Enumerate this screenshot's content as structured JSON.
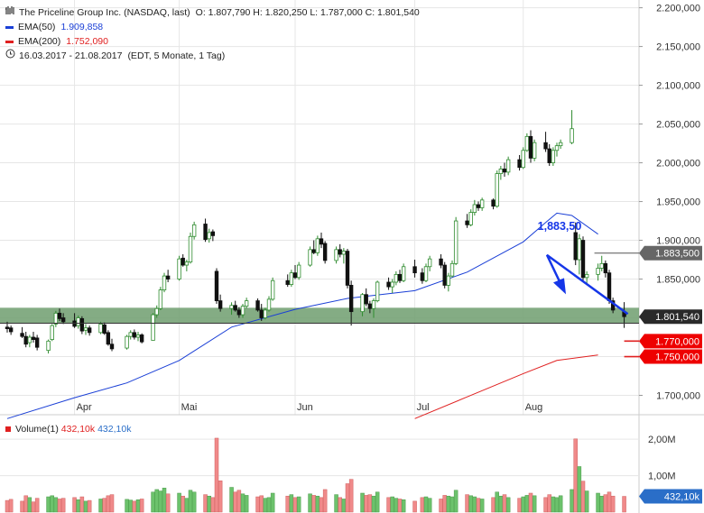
{
  "header": {
    "title": "The Priceline Group Inc. (NASDAQ, last)",
    "ohlc": "O: 1.807,790  H: 1.820,250  L: 1.787,000  C: 1.801,540",
    "ema50_label": "EMA(50)",
    "ema50_value": "1.909,858",
    "ema200_label": "EMA(200)",
    "ema200_value": "1.752,090",
    "range": "16.03.2017 - 21.08.2017",
    "range_detail": "(EDT, 5 Monate, 1 Tag)"
  },
  "volume_legend": {
    "label": "Volume(1)",
    "value_red": "432,10k",
    "value_blue": "432,10k"
  },
  "colors": {
    "up": "#2e8b2e",
    "down": "#111111",
    "ema50": "#1a3fd6",
    "ema200": "#e02020",
    "zone": "#6e9e6e",
    "badge_red": "#ee0000",
    "badge_dark": "#2a2a2a",
    "badge_grey": "#666666",
    "vol_up": "#6cc26c",
    "vol_down": "#f08a8a",
    "arrow": "#1536e8"
  },
  "annotations": {
    "target": "1,883,50"
  },
  "chart_data": {
    "type": "candlestick",
    "y_ticks": [
      "2.200,000",
      "2.150,000",
      "2.100,000",
      "2.050,000",
      "2.000,000",
      "1.950,000",
      "1.900,000",
      "1.850,000",
      "1.800,000",
      "1.750,000",
      "1.700,000"
    ],
    "y_tick_values": [
      2200,
      2150,
      2100,
      2050,
      2000,
      1950,
      1900,
      1850,
      1800,
      1750,
      1700
    ],
    "ylim": [
      1675,
      2210
    ],
    "x_labels": [
      "Apr",
      "Mai",
      "Jun",
      "Jul",
      "Aug"
    ],
    "x_label_dates": [
      "2017-04-03",
      "2017-05-01",
      "2017-06-01",
      "2017-07-03",
      "2017-08-01"
    ],
    "xlim": [
      "2017-03-16",
      "2017-08-31"
    ],
    "grid": true,
    "support_zone": [
      1793,
      1813
    ],
    "price_badges": [
      {
        "label": "1.883,500",
        "value": 1883.5,
        "style": "grey"
      },
      {
        "label": "1.801,540",
        "value": 1801.54,
        "style": "dark"
      },
      {
        "label": "1.770,000",
        "value": 1770,
        "style": "red"
      },
      {
        "label": "1.750,000",
        "value": 1750,
        "style": "red"
      }
    ],
    "red_levels": [
      1770,
      1750
    ],
    "target_level": 1883.5,
    "volume_ticks": [
      "2,00M",
      "1,00M"
    ],
    "volume_tick_values": [
      2.0,
      1.0
    ],
    "volume_badge": "432,10k",
    "volume_current": 0.4321,
    "ema50": [
      [
        "2017-03-16",
        1670
      ],
      [
        "2017-04-03",
        1697
      ],
      [
        "2017-04-17",
        1716
      ],
      [
        "2017-05-01",
        1745
      ],
      [
        "2017-05-15",
        1788
      ],
      [
        "2017-06-01",
        1811
      ],
      [
        "2017-06-15",
        1825
      ],
      [
        "2017-07-03",
        1835
      ],
      [
        "2017-07-17",
        1859
      ],
      [
        "2017-08-01",
        1898
      ],
      [
        "2017-08-07",
        1923
      ],
      [
        "2017-08-10",
        1935
      ],
      [
        "2017-08-14",
        1932
      ],
      [
        "2017-08-21",
        1908
      ]
    ],
    "ema200": [
      [
        "2017-07-03",
        1670
      ],
      [
        "2017-07-17",
        1698
      ],
      [
        "2017-08-01",
        1728
      ],
      [
        "2017-08-10",
        1745
      ],
      [
        "2017-08-21",
        1752
      ]
    ],
    "candles": [
      {
        "d": "2017-03-16",
        "o": 1788,
        "h": 1795,
        "l": 1781,
        "c": 1786,
        "v": 0.32
      },
      {
        "d": "2017-03-17",
        "o": 1787,
        "h": 1790,
        "l": 1778,
        "c": 1782,
        "v": 0.35
      },
      {
        "d": "2017-03-20",
        "o": 1780,
        "h": 1788,
        "l": 1774,
        "c": 1776,
        "v": 0.3
      },
      {
        "d": "2017-03-21",
        "o": 1776,
        "h": 1782,
        "l": 1762,
        "c": 1766,
        "v": 0.45
      },
      {
        "d": "2017-03-22",
        "o": 1768,
        "h": 1778,
        "l": 1762,
        "c": 1775,
        "v": 0.4
      },
      {
        "d": "2017-03-23",
        "o": 1775,
        "h": 1782,
        "l": 1768,
        "c": 1772,
        "v": 0.28
      },
      {
        "d": "2017-03-24",
        "o": 1774,
        "h": 1778,
        "l": 1758,
        "c": 1762,
        "v": 0.38
      },
      {
        "d": "2017-03-27",
        "o": 1758,
        "h": 1772,
        "l": 1754,
        "c": 1770,
        "v": 0.42
      },
      {
        "d": "2017-03-28",
        "o": 1772,
        "h": 1792,
        "l": 1770,
        "c": 1790,
        "v": 0.45
      },
      {
        "d": "2017-03-29",
        "o": 1792,
        "h": 1809,
        "l": 1788,
        "c": 1806,
        "v": 0.4
      },
      {
        "d": "2017-03-30",
        "o": 1806,
        "h": 1812,
        "l": 1796,
        "c": 1799,
        "v": 0.36
      },
      {
        "d": "2017-03-31",
        "o": 1800,
        "h": 1806,
        "l": 1792,
        "c": 1795,
        "v": 0.38
      },
      {
        "d": "2017-04-03",
        "o": 1796,
        "h": 1806,
        "l": 1787,
        "c": 1789,
        "v": 0.4
      },
      {
        "d": "2017-04-04",
        "o": 1790,
        "h": 1803,
        "l": 1786,
        "c": 1800,
        "v": 0.34
      },
      {
        "d": "2017-04-05",
        "o": 1799,
        "h": 1802,
        "l": 1779,
        "c": 1783,
        "v": 0.42
      },
      {
        "d": "2017-04-06",
        "o": 1784,
        "h": 1792,
        "l": 1778,
        "c": 1787,
        "v": 0.3
      },
      {
        "d": "2017-04-07",
        "o": 1787,
        "h": 1790,
        "l": 1777,
        "c": 1781,
        "v": 0.32
      },
      {
        "d": "2017-04-10",
        "o": 1781,
        "h": 1795,
        "l": 1779,
        "c": 1792,
        "v": 0.36
      },
      {
        "d": "2017-04-11",
        "o": 1791,
        "h": 1794,
        "l": 1778,
        "c": 1780,
        "v": 0.38
      },
      {
        "d": "2017-04-12",
        "o": 1781,
        "h": 1784,
        "l": 1764,
        "c": 1766,
        "v": 0.45
      },
      {
        "d": "2017-04-13",
        "o": 1766,
        "h": 1773,
        "l": 1757,
        "c": 1760,
        "v": 0.48
      },
      {
        "d": "2017-04-17",
        "o": 1761,
        "h": 1778,
        "l": 1759,
        "c": 1776,
        "v": 0.35
      },
      {
        "d": "2017-04-18",
        "o": 1776,
        "h": 1784,
        "l": 1772,
        "c": 1781,
        "v": 0.33
      },
      {
        "d": "2017-04-19",
        "o": 1781,
        "h": 1785,
        "l": 1772,
        "c": 1775,
        "v": 0.3
      },
      {
        "d": "2017-04-20",
        "o": 1775,
        "h": 1782,
        "l": 1770,
        "c": 1778,
        "v": 0.34
      },
      {
        "d": "2017-04-21",
        "o": 1778,
        "h": 1780,
        "l": 1767,
        "c": 1769,
        "v": 0.36
      },
      {
        "d": "2017-04-24",
        "o": 1771,
        "h": 1806,
        "l": 1771,
        "c": 1804,
        "v": 0.55
      },
      {
        "d": "2017-04-25",
        "o": 1804,
        "h": 1816,
        "l": 1800,
        "c": 1812,
        "v": 0.62
      },
      {
        "d": "2017-04-26",
        "o": 1812,
        "h": 1840,
        "l": 1810,
        "c": 1836,
        "v": 0.58
      },
      {
        "d": "2017-04-27",
        "o": 1836,
        "h": 1858,
        "l": 1833,
        "c": 1854,
        "v": 0.66
      },
      {
        "d": "2017-04-28",
        "o": 1854,
        "h": 1862,
        "l": 1846,
        "c": 1850,
        "v": 0.5
      },
      {
        "d": "2017-05-01",
        "o": 1850,
        "h": 1880,
        "l": 1848,
        "c": 1876,
        "v": 0.52
      },
      {
        "d": "2017-05-02",
        "o": 1877,
        "h": 1882,
        "l": 1866,
        "c": 1868,
        "v": 0.44
      },
      {
        "d": "2017-05-03",
        "o": 1868,
        "h": 1875,
        "l": 1860,
        "c": 1872,
        "v": 0.38
      },
      {
        "d": "2017-05-04",
        "o": 1872,
        "h": 1910,
        "l": 1870,
        "c": 1905,
        "v": 0.6
      },
      {
        "d": "2017-05-05",
        "o": 1905,
        "h": 1924,
        "l": 1901,
        "c": 1920,
        "v": 0.55
      },
      {
        "d": "2017-05-08",
        "o": 1921,
        "h": 1928,
        "l": 1898,
        "c": 1901,
        "v": 0.48
      },
      {
        "d": "2017-05-09",
        "o": 1902,
        "h": 1915,
        "l": 1897,
        "c": 1910,
        "v": 0.44
      },
      {
        "d": "2017-05-10",
        "o": 1911,
        "h": 1914,
        "l": 1899,
        "c": 1906,
        "v": 0.4
      },
      {
        "d": "2017-05-11",
        "o": 1860,
        "h": 1864,
        "l": 1818,
        "c": 1822,
        "v": 2.03
      },
      {
        "d": "2017-05-12",
        "o": 1822,
        "h": 1830,
        "l": 1808,
        "c": 1812,
        "v": 0.86
      },
      {
        "d": "2017-05-15",
        "o": 1812,
        "h": 1820,
        "l": 1804,
        "c": 1816,
        "v": 0.68
      },
      {
        "d": "2017-05-16",
        "o": 1816,
        "h": 1822,
        "l": 1808,
        "c": 1810,
        "v": 0.55
      },
      {
        "d": "2017-05-17",
        "o": 1810,
        "h": 1814,
        "l": 1800,
        "c": 1804,
        "v": 0.6
      },
      {
        "d": "2017-05-18",
        "o": 1804,
        "h": 1818,
        "l": 1800,
        "c": 1815,
        "v": 0.5
      },
      {
        "d": "2017-05-19",
        "o": 1815,
        "h": 1826,
        "l": 1812,
        "c": 1822,
        "v": 0.46
      },
      {
        "d": "2017-05-22",
        "o": 1822,
        "h": 1825,
        "l": 1808,
        "c": 1810,
        "v": 0.42
      },
      {
        "d": "2017-05-23",
        "o": 1810,
        "h": 1818,
        "l": 1796,
        "c": 1800,
        "v": 0.45
      },
      {
        "d": "2017-05-24",
        "o": 1800,
        "h": 1813,
        "l": 1798,
        "c": 1810,
        "v": 0.38
      },
      {
        "d": "2017-05-25",
        "o": 1810,
        "h": 1828,
        "l": 1808,
        "c": 1824,
        "v": 0.4
      },
      {
        "d": "2017-05-26",
        "o": 1824,
        "h": 1852,
        "l": 1822,
        "c": 1848,
        "v": 0.52
      },
      {
        "d": "2017-05-30",
        "o": 1848,
        "h": 1856,
        "l": 1840,
        "c": 1843,
        "v": 0.44
      },
      {
        "d": "2017-05-31",
        "o": 1843,
        "h": 1862,
        "l": 1840,
        "c": 1858,
        "v": 0.48
      },
      {
        "d": "2017-06-01",
        "o": 1858,
        "h": 1868,
        "l": 1850,
        "c": 1852,
        "v": 0.4
      },
      {
        "d": "2017-06-02",
        "o": 1852,
        "h": 1872,
        "l": 1849,
        "c": 1868,
        "v": 0.42
      },
      {
        "d": "2017-06-05",
        "o": 1868,
        "h": 1892,
        "l": 1866,
        "c": 1888,
        "v": 0.5
      },
      {
        "d": "2017-06-06",
        "o": 1888,
        "h": 1900,
        "l": 1882,
        "c": 1884,
        "v": 0.46
      },
      {
        "d": "2017-06-07",
        "o": 1884,
        "h": 1906,
        "l": 1880,
        "c": 1902,
        "v": 0.44
      },
      {
        "d": "2017-06-08",
        "o": 1902,
        "h": 1910,
        "l": 1890,
        "c": 1895,
        "v": 0.4
      },
      {
        "d": "2017-06-09",
        "o": 1896,
        "h": 1899,
        "l": 1870,
        "c": 1874,
        "v": 0.62
      },
      {
        "d": "2017-06-12",
        "o": 1874,
        "h": 1892,
        "l": 1870,
        "c": 1888,
        "v": 0.48
      },
      {
        "d": "2017-06-13",
        "o": 1888,
        "h": 1895,
        "l": 1878,
        "c": 1882,
        "v": 0.4
      },
      {
        "d": "2017-06-14",
        "o": 1882,
        "h": 1890,
        "l": 1870,
        "c": 1886,
        "v": 0.36
      },
      {
        "d": "2017-06-15",
        "o": 1886,
        "h": 1889,
        "l": 1838,
        "c": 1842,
        "v": 0.78
      },
      {
        "d": "2017-06-16",
        "o": 1842,
        "h": 1848,
        "l": 1790,
        "c": 1808,
        "v": 0.9
      },
      {
        "d": "2017-06-19",
        "o": 1808,
        "h": 1832,
        "l": 1802,
        "c": 1830,
        "v": 0.52
      },
      {
        "d": "2017-06-20",
        "o": 1830,
        "h": 1838,
        "l": 1815,
        "c": 1818,
        "v": 0.46
      },
      {
        "d": "2017-06-21",
        "o": 1818,
        "h": 1822,
        "l": 1806,
        "c": 1812,
        "v": 0.48
      },
      {
        "d": "2017-06-22",
        "o": 1812,
        "h": 1825,
        "l": 1800,
        "c": 1822,
        "v": 0.44
      },
      {
        "d": "2017-06-23",
        "o": 1822,
        "h": 1848,
        "l": 1820,
        "c": 1846,
        "v": 0.55
      },
      {
        "d": "2017-06-26",
        "o": 1846,
        "h": 1852,
        "l": 1836,
        "c": 1840,
        "v": 0.4
      },
      {
        "d": "2017-06-27",
        "o": 1840,
        "h": 1850,
        "l": 1832,
        "c": 1846,
        "v": 0.42
      },
      {
        "d": "2017-06-28",
        "o": 1846,
        "h": 1860,
        "l": 1842,
        "c": 1856,
        "v": 0.38
      },
      {
        "d": "2017-06-29",
        "o": 1856,
        "h": 1862,
        "l": 1845,
        "c": 1848,
        "v": 0.36
      },
      {
        "d": "2017-06-30",
        "o": 1848,
        "h": 1870,
        "l": 1846,
        "c": 1866,
        "v": 0.34
      },
      {
        "d": "2017-07-03",
        "o": 1866,
        "h": 1875,
        "l": 1852,
        "c": 1858,
        "v": 0.3
      },
      {
        "d": "2017-07-05",
        "o": 1858,
        "h": 1864,
        "l": 1844,
        "c": 1848,
        "v": 0.4
      },
      {
        "d": "2017-07-06",
        "o": 1848,
        "h": 1870,
        "l": 1846,
        "c": 1866,
        "v": 0.42
      },
      {
        "d": "2017-07-07",
        "o": 1866,
        "h": 1880,
        "l": 1860,
        "c": 1876,
        "v": 0.38
      },
      {
        "d": "2017-07-10",
        "o": 1876,
        "h": 1882,
        "l": 1864,
        "c": 1868,
        "v": 0.36
      },
      {
        "d": "2017-07-11",
        "o": 1868,
        "h": 1872,
        "l": 1838,
        "c": 1842,
        "v": 0.46
      },
      {
        "d": "2017-07-12",
        "o": 1842,
        "h": 1858,
        "l": 1834,
        "c": 1854,
        "v": 0.44
      },
      {
        "d": "2017-07-13",
        "o": 1854,
        "h": 1874,
        "l": 1852,
        "c": 1870,
        "v": 0.42
      },
      {
        "d": "2017-07-14",
        "o": 1870,
        "h": 1930,
        "l": 1868,
        "c": 1925,
        "v": 0.6
      },
      {
        "d": "2017-07-17",
        "o": 1925,
        "h": 1934,
        "l": 1916,
        "c": 1920,
        "v": 0.48
      },
      {
        "d": "2017-07-18",
        "o": 1920,
        "h": 1940,
        "l": 1918,
        "c": 1936,
        "v": 0.45
      },
      {
        "d": "2017-07-19",
        "o": 1936,
        "h": 1952,
        "l": 1932,
        "c": 1946,
        "v": 0.42
      },
      {
        "d": "2017-07-20",
        "o": 1946,
        "h": 1950,
        "l": 1938,
        "c": 1942,
        "v": 0.38
      },
      {
        "d": "2017-07-21",
        "o": 1942,
        "h": 1955,
        "l": 1938,
        "c": 1952,
        "v": 0.36
      },
      {
        "d": "2017-07-24",
        "o": 1952,
        "h": 1954,
        "l": 1940,
        "c": 1944,
        "v": 0.4
      },
      {
        "d": "2017-07-25",
        "o": 1944,
        "h": 1990,
        "l": 1942,
        "c": 1986,
        "v": 0.55
      },
      {
        "d": "2017-07-26",
        "o": 1986,
        "h": 1996,
        "l": 1978,
        "c": 1992,
        "v": 0.44
      },
      {
        "d": "2017-07-27",
        "o": 1992,
        "h": 2000,
        "l": 1982,
        "c": 1988,
        "v": 0.48
      },
      {
        "d": "2017-07-28",
        "o": 1988,
        "h": 2008,
        "l": 1984,
        "c": 2004,
        "v": 0.4
      },
      {
        "d": "2017-07-31",
        "o": 2004,
        "h": 2010,
        "l": 1990,
        "c": 1994,
        "v": 0.38
      },
      {
        "d": "2017-08-01",
        "o": 1994,
        "h": 2020,
        "l": 1992,
        "c": 2016,
        "v": 0.42
      },
      {
        "d": "2017-08-02",
        "o": 2016,
        "h": 2038,
        "l": 2014,
        "c": 2034,
        "v": 0.46
      },
      {
        "d": "2017-08-03",
        "o": 2034,
        "h": 2042,
        "l": 2000,
        "c": 2006,
        "v": 0.52
      },
      {
        "d": "2017-08-04",
        "o": 2006,
        "h": 2030,
        "l": 2002,
        "c": 2026,
        "v": 0.45
      },
      {
        "d": "2017-08-07",
        "o": 2026,
        "h": 2040,
        "l": 2014,
        "c": 2018,
        "v": 0.4
      },
      {
        "d": "2017-08-08",
        "o": 2018,
        "h": 2024,
        "l": 1996,
        "c": 2000,
        "v": 0.48
      },
      {
        "d": "2017-08-09",
        "o": 2000,
        "h": 2020,
        "l": 1996,
        "c": 2016,
        "v": 0.42
      },
      {
        "d": "2017-08-10",
        "o": 2016,
        "h": 2026,
        "l": 2008,
        "c": 2022,
        "v": 0.4
      },
      {
        "d": "2017-08-11",
        "o": 2022,
        "h": 2030,
        "l": 2018,
        "c": 2026,
        "v": 0.45
      },
      {
        "d": "2017-08-14",
        "o": 2026,
        "h": 2068,
        "l": 2024,
        "c": 2044,
        "v": 0.62
      },
      {
        "d": "2017-08-15",
        "o": 1910,
        "h": 1923,
        "l": 1868,
        "c": 1875,
        "v": 2.01
      },
      {
        "d": "2017-08-16",
        "o": 1875,
        "h": 1908,
        "l": 1856,
        "c": 1902,
        "v": 1.25
      },
      {
        "d": "2017-08-17",
        "o": 1900,
        "h": 1905,
        "l": 1848,
        "c": 1852,
        "v": 0.85
      },
      {
        "d": "2017-08-18",
        "o": 1852,
        "h": 1860,
        "l": 1844,
        "c": 1856,
        "v": 0.58
      },
      {
        "d": "2017-08-21",
        "o": 1856,
        "h": 1870,
        "l": 1848,
        "c": 1864,
        "v": 0.52
      },
      {
        "d": "2017-08-22",
        "o": 1864,
        "h": 1880,
        "l": 1860,
        "c": 1870,
        "v": 0.44
      },
      {
        "d": "2017-08-23",
        "o": 1870,
        "h": 1874,
        "l": 1852,
        "c": 1858,
        "v": 0.48
      },
      {
        "d": "2017-08-24",
        "o": 1858,
        "h": 1862,
        "l": 1818,
        "c": 1822,
        "v": 0.55
      },
      {
        "d": "2017-08-25",
        "o": 1822,
        "h": 1826,
        "l": 1806,
        "c": 1810,
        "v": 0.44
      },
      {
        "d": "2017-08-28",
        "o": 1807.79,
        "h": 1820.25,
        "l": 1787,
        "c": 1801.54,
        "v": 0.4321
      }
    ]
  }
}
